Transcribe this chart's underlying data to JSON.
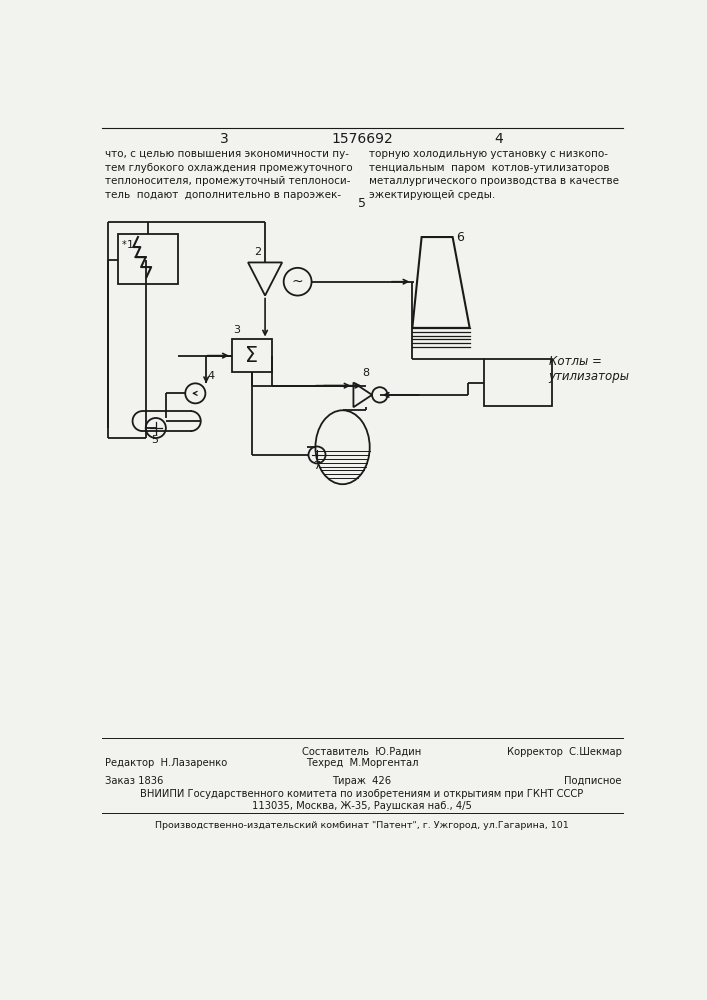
{
  "page_number_left": "3",
  "page_number_center": "1576692",
  "page_number_right": "4",
  "label_5_center": "5",
  "text_left_col": "что, с целью повышения экономичности пу-\nтем глубокого охлаждения промежуточного\nтеплоносителя, промежуточный теплоноси-\nтель  подают  дополнительно в пароэжек-",
  "text_right_col": "торную холодильную установку с низкопо-\nтенциальным  паром  котлов-утилизаторов\nметаллургического производства в качестве\nэжектирующей среды.",
  "label_kotly": "Котлы =\nутилизаторы",
  "footer_editor": "Редактор  Н.Лазаренко",
  "footer_compiler": "Составитель  Ю.Радин",
  "footer_techred": "Техред  М.Моргентал",
  "footer_corrector": "Корректор  С.Шекмар",
  "footer_order": "Заказ 1836",
  "footer_tirazh": "Тираж  426",
  "footer_podpisnoe": "Подписное",
  "footer_vniiipi": "ВНИИПИ Государственного комитета по изобретениям и открытиям при ГКНТ СССР",
  "footer_address": "113035, Москва, Ж-35, Раушская наб., 4/5",
  "footer_proizv": "Производственно-издательский комбинат \"Патент\", г. Ужгород, ул.Гагарина, 101",
  "bg_color": "#f2f2ee",
  "line_color": "#1a1a1a",
  "text_color": "#1a1a1a"
}
